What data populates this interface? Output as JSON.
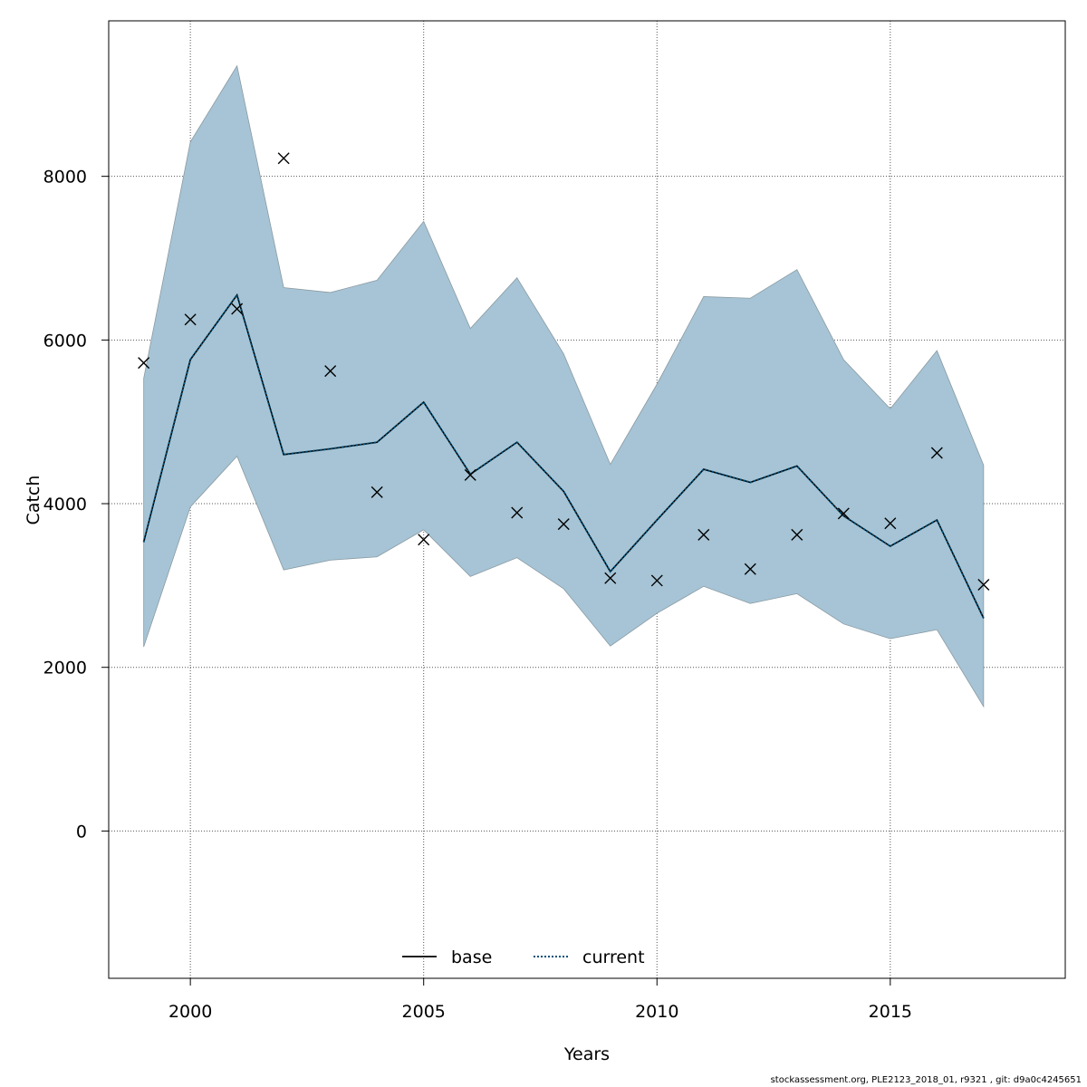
{
  "chart_data": {
    "type": "line",
    "xlabel": "Years",
    "ylabel": "Catch",
    "xlim": [
      1998.25,
      2018.75
    ],
    "ylim": [
      -1800,
      9900
    ],
    "xticks": [
      2000,
      2005,
      2010,
      2015
    ],
    "yticks": [
      0,
      2000,
      4000,
      6000,
      8000
    ],
    "xtick_labels": [
      "2000",
      "2005",
      "2010",
      "2015"
    ],
    "ytick_labels": [
      "0",
      "2000",
      "4000",
      "6000",
      "8000"
    ],
    "grid": true,
    "legend_position": "bottom-center",
    "x": [
      1999,
      2000,
      2001,
      2002,
      2003,
      2004,
      2005,
      2006,
      2007,
      2008,
      2009,
      2010,
      2011,
      2012,
      2013,
      2014,
      2015,
      2016,
      2017
    ],
    "series": [
      {
        "name": "base",
        "style": "solid",
        "color": "#000000",
        "values": [
          3530,
          5760,
          6550,
          4600,
          4670,
          4750,
          5240,
          4360,
          4750,
          4150,
          3170,
          3800,
          4420,
          4260,
          4460,
          3850,
          3480,
          3800,
          2600
        ]
      },
      {
        "name": "current",
        "style": "dotted",
        "color": "#00507a",
        "values": [
          3530,
          5760,
          6550,
          4600,
          4670,
          4750,
          5240,
          4360,
          4750,
          4150,
          3170,
          3800,
          4420,
          4260,
          4460,
          3850,
          3480,
          3800,
          2600
        ]
      }
    ],
    "band": {
      "upper": [
        5530,
        8420,
        9350,
        6640,
        6580,
        6730,
        7450,
        6140,
        6760,
        5830,
        4480,
        5460,
        6530,
        6510,
        6860,
        5760,
        5160,
        5870,
        4470
      ],
      "lower": [
        2250,
        3960,
        4580,
        3190,
        3310,
        3350,
        3680,
        3110,
        3340,
        2960,
        2260,
        2660,
        2990,
        2780,
        2900,
        2530,
        2350,
        2460,
        1520
      ],
      "color": "#a6c4d5"
    },
    "observed": [
      5720,
      6250,
      6380,
      8220,
      5620,
      4140,
      3560,
      4350,
      3890,
      3750,
      3090,
      3060,
      3620,
      3200,
      3620,
      3880,
      3760,
      4620,
      3010
    ]
  },
  "footer_text": "stockassessment.org, PLE2123_2018_01, r9321 , git: d9a0c4245651"
}
